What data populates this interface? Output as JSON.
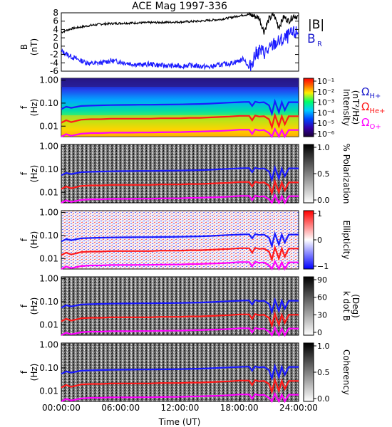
{
  "title": "ACE Mag 1997-336",
  "colors": {
    "black": "#000000",
    "blue": "#1a1aff",
    "red": "#ff1a1a",
    "magenta": "#ff00ff",
    "dark_blue_label": "#1a1acc"
  },
  "chart_data": [
    {
      "id": "bfield",
      "type": "line",
      "ylabel": "B\n(nT)",
      "ylim": [
        -6,
        8
      ],
      "yticks": [
        "8",
        "6",
        "4",
        "2",
        "0",
        "-2",
        "-4",
        "-6"
      ],
      "legend": [
        "|B|",
        "B",
        "R"
      ],
      "series": [
        {
          "name": "|B|",
          "x_hours": [
            0,
            1,
            2,
            3,
            4,
            6,
            8,
            10,
            12,
            14,
            16,
            17,
            18,
            18.5,
            19,
            19.5,
            20,
            20.5,
            21,
            21.5,
            22,
            22.5,
            23,
            23.5,
            24
          ],
          "values": [
            3.3,
            4.2,
            4.6,
            5.0,
            5.3,
            5.5,
            5.6,
            5.7,
            5.8,
            6.0,
            6.4,
            6.8,
            7.3,
            7.5,
            7.6,
            7.2,
            6.8,
            3.5,
            6.5,
            7.5,
            4.5,
            7.0,
            6.0,
            7.3,
            7.0
          ]
        },
        {
          "name": "B_R",
          "x_hours": [
            0,
            1,
            2,
            3,
            4,
            5,
            6,
            7,
            8,
            9,
            10,
            11,
            12,
            13,
            14,
            15,
            16,
            17,
            18,
            18.5,
            19,
            19.5,
            20,
            20.5,
            21,
            21.5,
            22,
            22.5,
            23,
            23.5,
            24
          ],
          "values": [
            -1.2,
            -2.5,
            -3.5,
            -4.2,
            -4.0,
            -3.5,
            -3.8,
            -4.2,
            -4.5,
            -4.3,
            -4.6,
            -4.7,
            -4.8,
            -4.6,
            -4.8,
            -5.0,
            -4.5,
            -4.2,
            -3.5,
            -3.0,
            -5.5,
            -2.5,
            -1.0,
            -1.5,
            -1.0,
            0.5,
            1.0,
            1.5,
            2.5,
            3.0,
            3.3
          ]
        }
      ]
    },
    {
      "id": "intensity",
      "type": "heatmap",
      "ylabel": "f\n(Hz)",
      "yticks": [
        "1.00",
        "0.10",
        "0.01"
      ],
      "colorbar": {
        "label": "Intensity\n(nT²/Hz)",
        "ticks": [
          "10⁻¹",
          "10⁻²",
          "10⁻³",
          "10⁻⁴",
          "10⁻⁵",
          "10⁻⁶"
        ]
      },
      "gyro_labels": [
        "ΩH+",
        "ΩHe+",
        "ΩO+"
      ]
    },
    {
      "id": "polarization",
      "type": "heatmap",
      "ylabel": "f\n(Hz)",
      "yticks": [
        "1.00",
        "0.10",
        "0.01"
      ],
      "colorbar": {
        "label": "% Polarization",
        "ticks": [
          "1.0",
          "0.5",
          "0.0"
        ]
      }
    },
    {
      "id": "ellipticity",
      "type": "heatmap",
      "ylabel": "f\n(Hz)",
      "yticks": [
        "1.00",
        "0.10",
        "0.01"
      ],
      "colorbar": {
        "label": "Ellipticity",
        "ticks": [
          "1",
          "0",
          "−1"
        ]
      }
    },
    {
      "id": "kdotb",
      "type": "heatmap",
      "ylabel": "f\n(Hz)",
      "yticks": [
        "1.00",
        "0.10",
        "0.01"
      ],
      "colorbar": {
        "label": "k dot B\n(Deg)",
        "ticks": [
          "90",
          "60",
          "30",
          "0"
        ]
      }
    },
    {
      "id": "coherency",
      "type": "heatmap",
      "ylabel": "f\n(Hz)",
      "yticks": [
        "1.00",
        "0.10",
        "0.01"
      ],
      "colorbar": {
        "label": "Coherency",
        "ticks": [
          "1.0",
          "0.5",
          "0.0"
        ]
      }
    }
  ],
  "gyrofrequency": {
    "x_hours": [
      0,
      0.5,
      1,
      2,
      3,
      4,
      5,
      6,
      7,
      8,
      9,
      10,
      11,
      12,
      13,
      14,
      15,
      16,
      17,
      18,
      18.5,
      19,
      19.3,
      19.6,
      20,
      20.5,
      21,
      21.3,
      21.6,
      22,
      22.3,
      22.6,
      23,
      23.5,
      24
    ],
    "H_plus": [
      0.055,
      0.07,
      0.062,
      0.075,
      0.078,
      0.08,
      0.082,
      0.083,
      0.084,
      0.085,
      0.085,
      0.086,
      0.087,
      0.088,
      0.09,
      0.092,
      0.095,
      0.1,
      0.105,
      0.11,
      0.112,
      0.113,
      0.075,
      0.115,
      0.105,
      0.11,
      0.08,
      0.035,
      0.12,
      0.04,
      0.11,
      0.05,
      0.11,
      0.11,
      0.11
    ],
    "He_plus": [
      0.014,
      0.018,
      0.015,
      0.019,
      0.02,
      0.02,
      0.021,
      0.021,
      0.021,
      0.021,
      0.021,
      0.022,
      0.022,
      0.022,
      0.023,
      0.023,
      0.024,
      0.025,
      0.026,
      0.028,
      0.028,
      0.028,
      0.018,
      0.029,
      0.026,
      0.027,
      0.02,
      0.009,
      0.03,
      0.01,
      0.027,
      0.012,
      0.027,
      0.027,
      0.027
    ],
    "O_plus": [
      0.0035,
      0.0045,
      0.0038,
      0.0047,
      0.005,
      0.005,
      0.0052,
      0.0052,
      0.0052,
      0.0053,
      0.0053,
      0.0054,
      0.0055,
      0.0055,
      0.0057,
      0.0058,
      0.006,
      0.0062,
      0.0065,
      0.007,
      0.007,
      0.007,
      0.0046,
      0.0072,
      0.0065,
      0.0068,
      0.005,
      0.0022,
      0.0075,
      0.0025,
      0.0068,
      0.003,
      0.0068,
      0.0068,
      0.0068
    ]
  },
  "xaxis": {
    "label": "Time (UT)",
    "ticks": [
      "00:00:00",
      "06:00:00",
      "12:00:00",
      "18:00:00",
      "24:00:00"
    ],
    "range_hours": [
      0,
      24
    ]
  },
  "freq_range_hz": [
    0.0035,
    1.2
  ]
}
